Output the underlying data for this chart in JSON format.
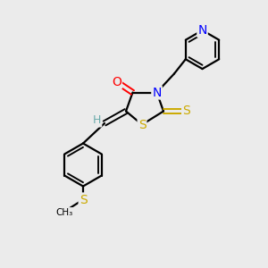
{
  "background_color": "#ebebeb",
  "bond_color": "#000000",
  "atom_colors": {
    "N": "#0000ff",
    "O": "#ff0000",
    "S": "#ccaa00",
    "S_thioether": "#ccaa00",
    "C": "#000000",
    "H": "#6aaaaa"
  },
  "figsize": [
    3.0,
    3.0
  ],
  "dpi": 100,
  "xlim": [
    0,
    10
  ],
  "ylim": [
    0,
    10
  ]
}
